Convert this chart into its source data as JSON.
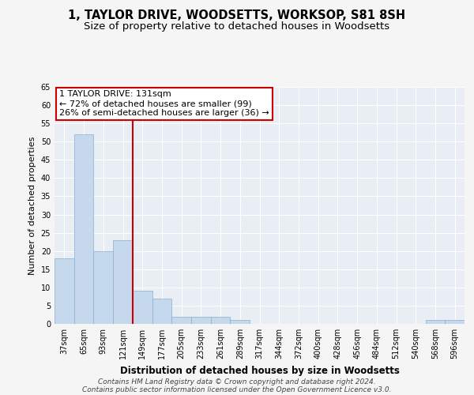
{
  "title": "1, TAYLOR DRIVE, WOODSETTS, WORKSOP, S81 8SH",
  "subtitle": "Size of property relative to detached houses in Woodsetts",
  "xlabel": "Distribution of detached houses by size in Woodsetts",
  "ylabel": "Number of detached properties",
  "categories": [
    "37sqm",
    "65sqm",
    "93sqm",
    "121sqm",
    "149sqm",
    "177sqm",
    "205sqm",
    "233sqm",
    "261sqm",
    "289sqm",
    "317sqm",
    "344sqm",
    "372sqm",
    "400sqm",
    "428sqm",
    "456sqm",
    "484sqm",
    "512sqm",
    "540sqm",
    "568sqm",
    "596sqm"
  ],
  "values": [
    18,
    52,
    20,
    23,
    9,
    7,
    2,
    2,
    2,
    1,
    0,
    0,
    0,
    0,
    0,
    0,
    0,
    0,
    0,
    1,
    1
  ],
  "bar_color": "#c6d9ec",
  "bar_edge_color": "#89aece",
  "background_color": "#e8eef4",
  "grid_color": "#ffffff",
  "annotation_box_text": "1 TAYLOR DRIVE: 131sqm\n← 72% of detached houses are smaller (99)\n26% of semi-detached houses are larger (36) →",
  "annotation_box_color": "#ffffff",
  "annotation_box_edge_color": "#cc0000",
  "vline_index": 3,
  "vline_color": "#cc0000",
  "ylim": [
    0,
    65
  ],
  "yticks": [
    0,
    5,
    10,
    15,
    20,
    25,
    30,
    35,
    40,
    45,
    50,
    55,
    60,
    65
  ],
  "footer_line1": "Contains HM Land Registry data © Crown copyright and database right 2024.",
  "footer_line2": "Contains public sector information licensed under the Open Government Licence v3.0.",
  "title_fontsize": 10.5,
  "subtitle_fontsize": 9.5,
  "xlabel_fontsize": 8.5,
  "ylabel_fontsize": 8,
  "tick_fontsize": 7,
  "annotation_fontsize": 8,
  "footer_fontsize": 6.5,
  "fig_bg": "#f5f5f5"
}
